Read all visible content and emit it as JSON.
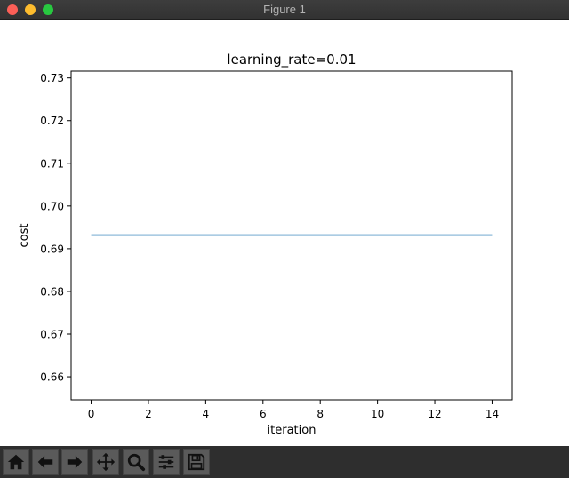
{
  "window": {
    "title": "Figure 1"
  },
  "toolbar": {
    "buttons": [
      {
        "name": "home-icon",
        "label": "Home"
      },
      {
        "name": "back-icon",
        "label": "Back"
      },
      {
        "name": "forward-icon",
        "label": "Forward"
      },
      {
        "name": "pan-icon",
        "label": "Pan"
      },
      {
        "name": "zoom-icon",
        "label": "Zoom"
      },
      {
        "name": "subplots-icon",
        "label": "Configure subplots"
      },
      {
        "name": "save-icon",
        "label": "Save"
      }
    ]
  },
  "colors": {
    "line": "#1f77b4",
    "titlebar": "#3a3a3a",
    "toolbar": "#2e2e2e"
  },
  "chart_data": {
    "type": "line",
    "title": "learning_rate=0.01",
    "xlabel": "iteration",
    "ylabel": "cost",
    "xlim": [
      -0.7,
      14.7
    ],
    "ylim": [
      0.6546,
      0.7316
    ],
    "xticks": [
      0,
      2,
      4,
      6,
      8,
      10,
      12,
      14
    ],
    "xtick_labels": [
      "0",
      "2",
      "4",
      "6",
      "8",
      "10",
      "12",
      "14"
    ],
    "yticks": [
      0.66,
      0.67,
      0.68,
      0.69,
      0.7,
      0.71,
      0.72,
      0.73
    ],
    "ytick_labels": [
      "0.66",
      "0.67",
      "0.68",
      "0.69",
      "0.70",
      "0.71",
      "0.72",
      "0.73"
    ],
    "grid": false,
    "series": [
      {
        "x": [
          0,
          1,
          2,
          3,
          4,
          5,
          6,
          7,
          8,
          9,
          10,
          11,
          12,
          13,
          14
        ],
        "values": [
          0.6932,
          0.6932,
          0.6932,
          0.6932,
          0.6932,
          0.6932,
          0.6932,
          0.6932,
          0.6932,
          0.6932,
          0.6932,
          0.6932,
          0.6932,
          0.6932,
          0.6932
        ]
      }
    ]
  }
}
